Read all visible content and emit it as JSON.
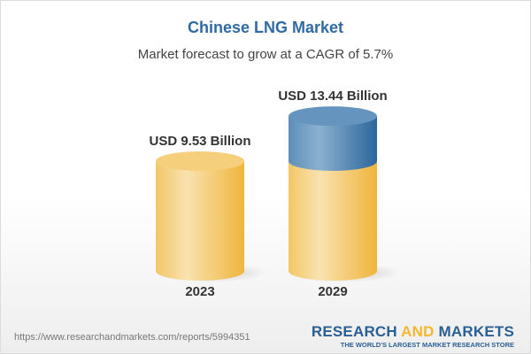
{
  "header": {
    "title": "Chinese LNG Market",
    "subtitle": "Market forecast to grow at a CAGR of 5.7%"
  },
  "chart_data": {
    "type": "bar",
    "title": "Chinese LNG Market",
    "subtitle": "Market forecast to grow at a CAGR of 5.7%",
    "categories": [
      "2023",
      "2029"
    ],
    "values": [
      9.53,
      13.44
    ],
    "data_labels": [
      "USD 9.53 Billion",
      "USD 13.44 Billion"
    ],
    "unit": "USD Billion",
    "colors": {
      "base": "#f2c35a",
      "growth": "#4a80b0"
    }
  },
  "footer": {
    "url": "https://www.researchandmarkets.com/reports/5994351",
    "logo_part1": "RESEARCH ",
    "logo_part2": "AND",
    "logo_part3": " MARKETS",
    "tagline": "THE WORLD'S LARGEST MARKET RESEARCH STORE"
  }
}
